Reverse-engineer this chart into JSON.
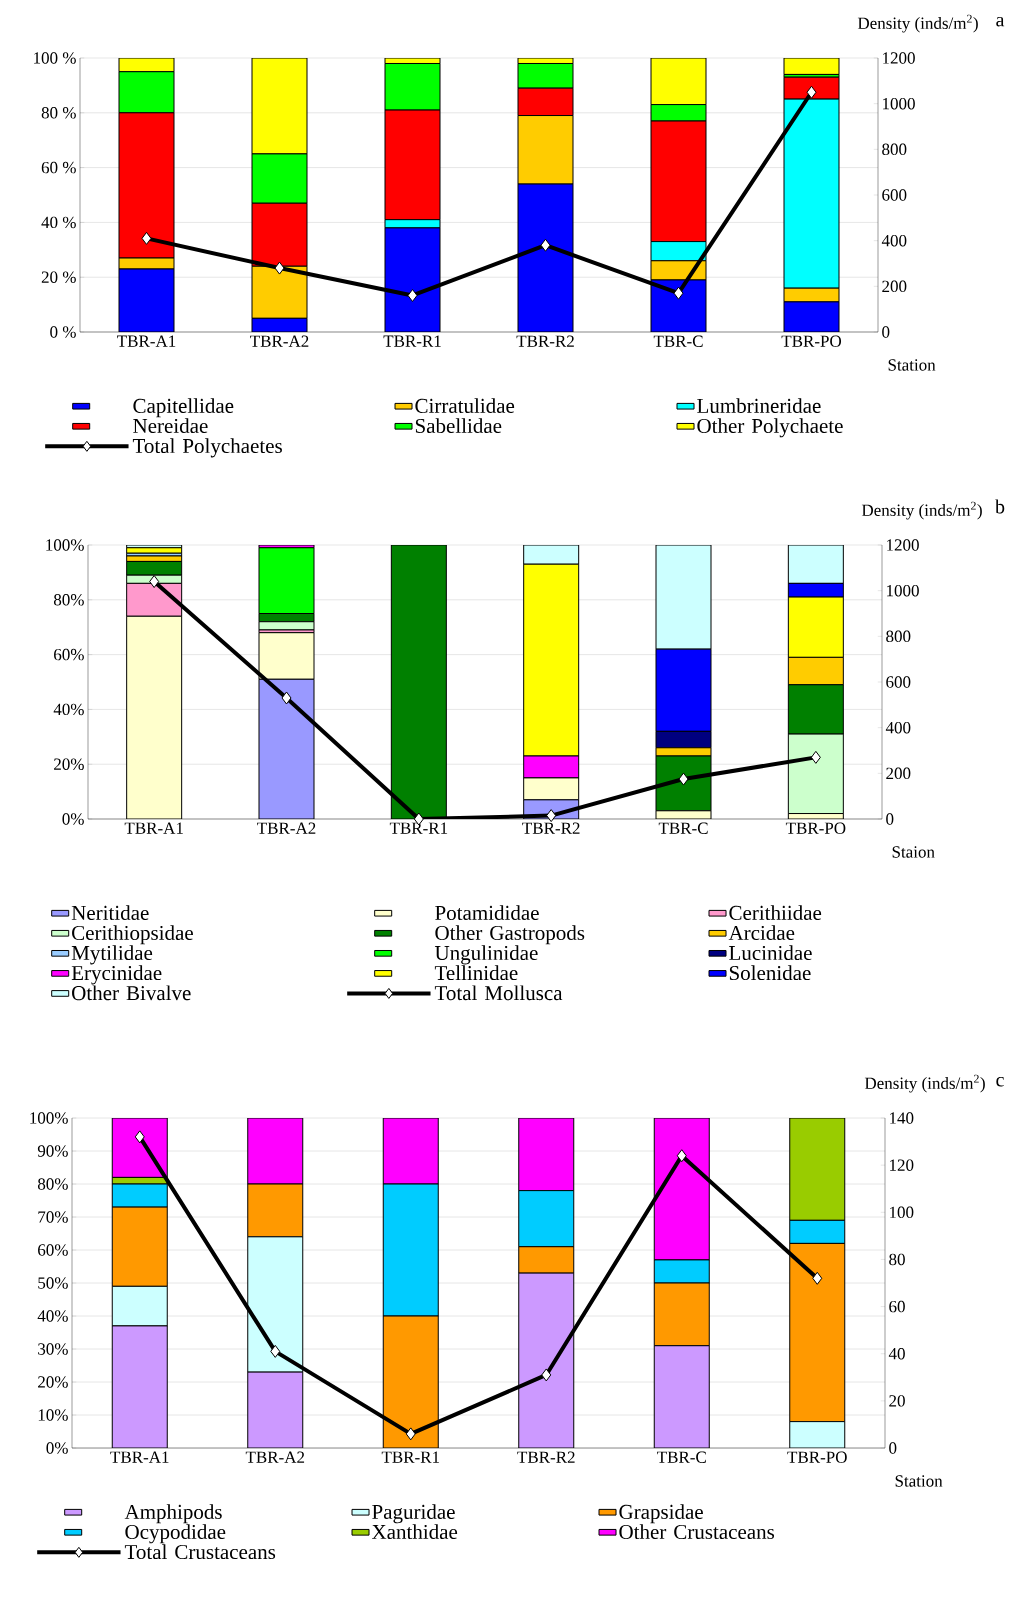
{
  "chart_data": [
    {
      "type": "bar",
      "stacked": true,
      "grid": "y",
      "legend": "bottom",
      "annotations": [
        "a"
      ],
      "xlabel": "Station",
      "y2label": "Density (inds/m$^{2}$)",
      "categories": [
        "TBR-A1",
        "TBR-A2",
        "TBR-R1",
        "TBR-R2",
        "TBR-C",
        "TBR-PO"
      ],
      "ylim": [
        0,
        100
      ],
      "yticks": [
        {
          "value": 0,
          "label": "0 %"
        },
        {
          "value": 20,
          "label": "20 %"
        },
        {
          "value": 40,
          "label": "40 %"
        },
        {
          "value": 60,
          "label": "60 %"
        },
        {
          "value": 80,
          "label": "80 %"
        },
        {
          "value": 100,
          "label": "100 %"
        }
      ],
      "y2lim": [
        0,
        1200
      ],
      "y2ticks": [
        0,
        200,
        400,
        600,
        800,
        1000,
        1200
      ],
      "series": [
        {
          "name": "Capitellidae",
          "color": "#0000ff",
          "values": [
            23,
            5,
            38,
            54,
            19,
            11
          ]
        },
        {
          "name": "Cirratulidae",
          "color": "#ffcc00",
          "values": [
            4,
            19,
            0,
            25,
            7,
            5
          ]
        },
        {
          "name": "Lumbrineridae",
          "color": "#00ffff",
          "values": [
            0,
            0,
            3,
            0,
            7,
            69
          ]
        },
        {
          "name": "Nereidae",
          "color": "#ff0000",
          "values": [
            53,
            23,
            40,
            10,
            44,
            8
          ]
        },
        {
          "name": "Sabellidae",
          "color": "#00ff00",
          "values": [
            15,
            18,
            17,
            9,
            6,
            1
          ]
        },
        {
          "name": "Other Polychaete",
          "color": "#ffff00",
          "values": [
            5,
            35,
            2,
            2,
            17,
            6
          ]
        },
        {
          "name": "Total Polychaetes",
          "type": "line",
          "axis": "y2",
          "color": "#000000",
          "marker": "diamond",
          "values": [
            410,
            280,
            160,
            380,
            170,
            1050
          ]
        }
      ]
    },
    {
      "type": "bar",
      "stacked": true,
      "grid": "y",
      "legend": "bottom",
      "annotations": [
        "b"
      ],
      "xlabel": "Staion",
      "y2label": "Density (inds/m$^{2}$)",
      "categories": [
        "TBR-A1",
        "TBR-A2",
        "TBR-R1",
        "TBR-R2",
        "TBR-C",
        "TBR-PO"
      ],
      "ylim": [
        0,
        100
      ],
      "yticks": [
        {
          "value": 0,
          "label": "0%"
        },
        {
          "value": 20,
          "label": "20%"
        },
        {
          "value": 40,
          "label": "40%"
        },
        {
          "value": 60,
          "label": "60%"
        },
        {
          "value": 80,
          "label": "80%"
        },
        {
          "value": 100,
          "label": "100%"
        }
      ],
      "y2lim": [
        0,
        1200
      ],
      "y2ticks": [
        0,
        200,
        400,
        600,
        800,
        1000,
        1200
      ],
      "series": [
        {
          "name": "Neritidae",
          "color": "#9999ff",
          "values": [
            0,
            51,
            0,
            7,
            0,
            0
          ]
        },
        {
          "name": "Potamididae",
          "color": "#ffffcc",
          "values": [
            74,
            17,
            0,
            8,
            3,
            2
          ]
        },
        {
          "name": "Cerithiidae",
          "color": "#ff99cc",
          "values": [
            12,
            1,
            0,
            0,
            0,
            0
          ]
        },
        {
          "name": "Cerithiopsidae",
          "color": "#ccffcc",
          "values": [
            3,
            3,
            0,
            0,
            0,
            29
          ]
        },
        {
          "name": "Other Gastropods",
          "color": "#008000",
          "values": [
            5,
            3,
            100,
            0,
            20,
            18
          ]
        },
        {
          "name": "Arcidae",
          "color": "#ffcc00",
          "values": [
            2,
            0,
            0,
            0,
            3,
            10
          ]
        },
        {
          "name": "Mytilidae",
          "color": "#99ccff",
          "values": [
            1,
            0,
            0,
            0,
            0,
            0
          ]
        },
        {
          "name": "Ungulinidae",
          "color": "#00ff00",
          "values": [
            0,
            24,
            0,
            0,
            0,
            0
          ]
        },
        {
          "name": "Lucinidae",
          "color": "#000080",
          "values": [
            0,
            0,
            0,
            0,
            6,
            0
          ]
        },
        {
          "name": "Erycinidae",
          "color": "#ff00ff",
          "values": [
            0,
            1,
            0,
            8,
            0,
            0
          ]
        },
        {
          "name": "Tellinidae",
          "color": "#ffff00",
          "values": [
            2,
            0,
            0,
            70,
            0,
            22
          ]
        },
        {
          "name": "Solenidae",
          "color": "#0000ff",
          "values": [
            0,
            0,
            0,
            0,
            30,
            5
          ]
        },
        {
          "name": "Other Bivalve",
          "color": "#ccffff",
          "values": [
            1,
            0,
            0,
            7,
            38,
            14
          ]
        },
        {
          "name": "Total Mollusca",
          "type": "line",
          "axis": "y2",
          "color": "#000000",
          "marker": "diamond",
          "values": [
            1040,
            530,
            0,
            15,
            175,
            270
          ]
        }
      ]
    },
    {
      "type": "bar",
      "stacked": true,
      "grid": "y",
      "legend": "bottom",
      "annotations": [
        "c"
      ],
      "xlabel": "Station",
      "y2label": "Density (inds/m$^{2}$)",
      "categories": [
        "TBR-A1",
        "TBR-A2",
        "TBR-R1",
        "TBR-R2",
        "TBR-C",
        "TBR-PO"
      ],
      "ylim": [
        0,
        100
      ],
      "yticks": [
        {
          "value": 0,
          "label": "0%"
        },
        {
          "value": 10,
          "label": "10%"
        },
        {
          "value": 20,
          "label": "20%"
        },
        {
          "value": 30,
          "label": "30%"
        },
        {
          "value": 40,
          "label": "40%"
        },
        {
          "value": 50,
          "label": "50%"
        },
        {
          "value": 60,
          "label": "60%"
        },
        {
          "value": 70,
          "label": "70%"
        },
        {
          "value": 80,
          "label": "80%"
        },
        {
          "value": 90,
          "label": "90%"
        },
        {
          "value": 100,
          "label": "100%"
        }
      ],
      "y2lim": [
        0,
        140
      ],
      "y2ticks": [
        0,
        20,
        40,
        60,
        80,
        100,
        120,
        140
      ],
      "series": [
        {
          "name": "Amphipods",
          "color": "#cc99ff",
          "values": [
            37,
            23,
            0,
            53,
            31,
            0
          ]
        },
        {
          "name": "Paguridae",
          "color": "#ccffff",
          "values": [
            12,
            41,
            0,
            0,
            0,
            8
          ]
        },
        {
          "name": "Grapsidae",
          "color": "#ff9900",
          "values": [
            24,
            16,
            40,
            8,
            19,
            54
          ]
        },
        {
          "name": "Ocypodidae",
          "color": "#00ccff",
          "values": [
            7,
            0,
            40,
            17,
            7,
            7
          ]
        },
        {
          "name": "Xanthidae",
          "color": "#99cc00",
          "values": [
            2,
            0,
            0,
            0,
            0,
            31
          ]
        },
        {
          "name": "Other Crustaceans",
          "color": "#ff00ff",
          "values": [
            18,
            20,
            20,
            22,
            43,
            0
          ]
        },
        {
          "name": "Total Crustaceans",
          "type": "line",
          "axis": "y2",
          "color": "#000000",
          "marker": "diamond",
          "values": [
            132,
            41,
            6,
            31,
            124,
            72
          ]
        }
      ]
    }
  ]
}
